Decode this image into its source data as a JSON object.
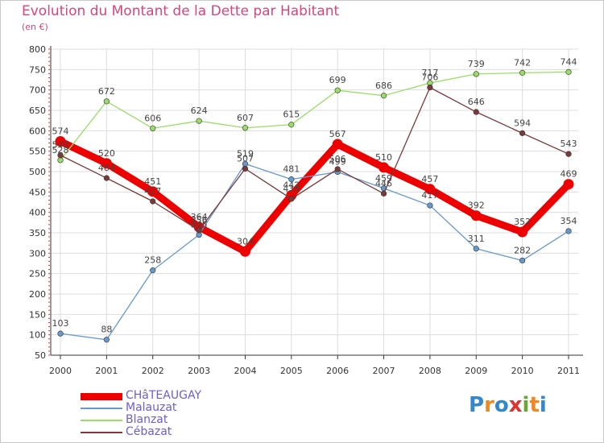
{
  "title": "Evolution du Montant de la Dette par Habitant",
  "subtitle": "(en €)",
  "logo": "Proxiti",
  "chart_data": {
    "type": "line",
    "title": "Evolution du Montant de la Dette par Habitant",
    "subtitle": "(en €)",
    "categories": [
      "2000",
      "2001",
      "2002",
      "2003",
      "2004",
      "2005",
      "2006",
      "2007",
      "2008",
      "2009",
      "2010",
      "2011"
    ],
    "yticks": [
      50,
      100,
      150,
      200,
      250,
      300,
      350,
      400,
      450,
      500,
      550,
      600,
      650,
      700,
      750,
      800
    ],
    "ylim": [
      50,
      800
    ],
    "grid": true,
    "legend_position": "bottom-left",
    "series": [
      {
        "name": "CHâTEAUGAY",
        "color": "#ee0000",
        "values": [
          574,
          520,
          451,
          364,
          304,
          442,
          567,
          510,
          457,
          392,
          352,
          469
        ]
      },
      {
        "name": "Malauzat",
        "color": "#6699cc",
        "values": [
          103,
          88,
          258,
          345,
          519,
          481,
          499,
          459,
          417,
          311,
          282,
          354
        ]
      },
      {
        "name": "Blanzat",
        "color": "#99dd66",
        "values": [
          528,
          672,
          606,
          624,
          607,
          615,
          699,
          686,
          717,
          739,
          742,
          744
        ]
      },
      {
        "name": "Cébazat",
        "color": "#7a3a3a",
        "values": [
          540,
          484,
          427,
          356,
          507,
          433,
          506,
          446,
          706,
          646,
          594,
          543
        ]
      }
    ]
  }
}
